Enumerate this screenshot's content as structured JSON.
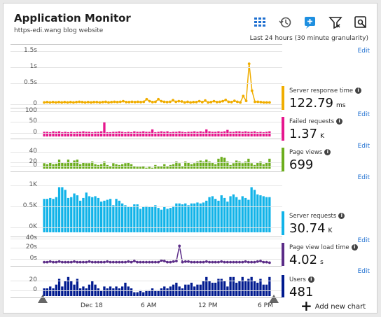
{
  "header": {
    "title": "Application Monitor",
    "subtitle": "https-edi.wang blog website",
    "time_range": "Last 24 hours (30 minute granularity)"
  },
  "toolbar": {
    "icons": [
      "grid-icon",
      "history-icon",
      "add-metric-icon",
      "filter-icon",
      "settings-icon"
    ],
    "accent": "#1e6fd0"
  },
  "edit_label": "Edit",
  "x_axis": {
    "labels": [
      "Dec 18",
      "6 AM",
      "12 PM",
      "6 PM"
    ]
  },
  "add_chart": {
    "label": "Add new chart",
    "icon": "plus-icon"
  },
  "watermark": "edi wang",
  "chart_data": [
    {
      "type": "line",
      "title": "Server response time",
      "display_value": "122.79",
      "unit": "ms",
      "color": "#f0ad00",
      "yticks": [
        "1.5s",
        "1s",
        "0.5s",
        "0"
      ],
      "ylim": [
        0,
        1.7
      ],
      "values": [
        0.08,
        0.09,
        0.08,
        0.09,
        0.08,
        0.09,
        0.08,
        0.09,
        0.08,
        0.09,
        0.08,
        0.09,
        0.1,
        0.09,
        0.08,
        0.09,
        0.08,
        0.09,
        0.09,
        0.08,
        0.09,
        0.1,
        0.08,
        0.09,
        0.1,
        0.09,
        0.1,
        0.12,
        0.09,
        0.09,
        0.1,
        0.09,
        0.1,
        0.09,
        0.1,
        0.18,
        0.12,
        0.09,
        0.1,
        0.18,
        0.12,
        0.1,
        0.09,
        0.1,
        0.15,
        0.1,
        0.12,
        0.11,
        0.08,
        0.1,
        0.08,
        0.09,
        0.09,
        0.12,
        0.09,
        0.14,
        0.08,
        0.09,
        0.12,
        0.09,
        0.1,
        0.12,
        0.16,
        0.1,
        0.09,
        0.13,
        0.1,
        0.08,
        0.28,
        0.13,
        1.3,
        0.45,
        0.1,
        0.1,
        0.09,
        0.08,
        0.08,
        0.08
      ]
    },
    {
      "type": "bar",
      "title": "Failed requests",
      "display_value": "1.37",
      "unit": "K",
      "color": "#e6178e",
      "yticks": [
        "100",
        "50",
        "0"
      ],
      "ylim": [
        0,
        110
      ],
      "values": [
        20,
        20,
        18,
        22,
        20,
        22,
        18,
        20,
        18,
        20,
        18,
        20,
        20,
        22,
        20,
        20,
        18,
        20,
        20,
        22,
        60,
        18,
        18,
        20,
        20,
        22,
        20,
        18,
        20,
        18,
        22,
        20,
        20,
        22,
        20,
        20,
        30,
        18,
        20,
        22,
        20,
        22,
        18,
        20,
        20,
        22,
        20,
        18,
        20,
        20,
        22,
        20,
        22,
        20,
        30,
        22,
        20,
        20,
        22,
        20,
        22,
        28,
        20,
        20,
        22,
        22,
        20,
        22,
        20,
        20,
        22,
        18,
        20,
        18,
        20,
        22
      ]
    },
    {
      "type": "bar",
      "title": "Page views",
      "display_value": "699",
      "unit": "",
      "color": "#6cad1d",
      "yticks": [
        "40",
        "20",
        "0"
      ],
      "ylim": [
        0,
        45
      ],
      "values": [
        12,
        10,
        14,
        10,
        11,
        20,
        14,
        12,
        20,
        14,
        18,
        20,
        10,
        14,
        12,
        12,
        16,
        10,
        8,
        10,
        16,
        8,
        6,
        12,
        10,
        8,
        10,
        12,
        14,
        10,
        6,
        4,
        4,
        6,
        2,
        4,
        2,
        8,
        6,
        6,
        10,
        6,
        8,
        10,
        16,
        12,
        6,
        16,
        14,
        10,
        12,
        16,
        18,
        16,
        20,
        16,
        14,
        10,
        22,
        26,
        24,
        16,
        8,
        12,
        18,
        16,
        12,
        16,
        22,
        12,
        8,
        14,
        16,
        10,
        14,
        22
      ]
    },
    {
      "type": "bar",
      "title": "Server requests",
      "display_value": "30.74",
      "unit": "K",
      "color": "#11b3e8",
      "yticks": [
        "1K",
        "0.5K",
        "0K"
      ],
      "ylim": [
        0,
        1100
      ],
      "values": [
        740,
        740,
        760,
        740,
        780,
        1000,
        1000,
        940,
        760,
        780,
        860,
        820,
        700,
        760,
        880,
        800,
        780,
        800,
        760,
        680,
        700,
        720,
        740,
        600,
        740,
        700,
        640,
        600,
        560,
        560,
        620,
        620,
        520,
        560,
        580,
        560,
        560,
        600,
        540,
        500,
        560,
        520,
        540,
        580,
        640,
        640,
        620,
        640,
        600,
        640,
        640,
        660,
        640,
        660,
        700,
        780,
        800,
        740,
        700,
        820,
        760,
        680,
        800,
        840,
        780,
        720,
        800,
        760,
        720,
        1000,
        940,
        840,
        820,
        800,
        780,
        780
      ]
    },
    {
      "type": "line",
      "title": "Page view load time",
      "display_value": "4.02",
      "unit": "s",
      "color": "#5b2c87",
      "yticks": [
        "40s",
        "20s",
        "0s"
      ],
      "ylim": [
        0,
        45
      ],
      "values": [
        3,
        3,
        4,
        3,
        3,
        4,
        3,
        3,
        3,
        3,
        4,
        3,
        3,
        3,
        3,
        4,
        3,
        3,
        3,
        3,
        3,
        4,
        3,
        3,
        3,
        3,
        3,
        3,
        4,
        3,
        5,
        3,
        3,
        3,
        3,
        3,
        3,
        3,
        3,
        6,
        5,
        3,
        3,
        4,
        5,
        32,
        3,
        4,
        4,
        3,
        3,
        3,
        3,
        3,
        4,
        3,
        3,
        3,
        3,
        4,
        3,
        3,
        3,
        3,
        3,
        3,
        3,
        4,
        3,
        3,
        3,
        4,
        5,
        3,
        3,
        2
      ]
    },
    {
      "type": "bar",
      "title": "Users",
      "display_value": "481",
      "unit": "",
      "color": "#001a8f",
      "yticks": [
        "20",
        "0"
      ],
      "ylim": [
        0,
        25
      ],
      "values": [
        8,
        8,
        10,
        8,
        12,
        18,
        10,
        16,
        20,
        16,
        12,
        18,
        8,
        10,
        8,
        12,
        16,
        12,
        8,
        6,
        10,
        8,
        10,
        8,
        10,
        8,
        10,
        14,
        10,
        8,
        4,
        4,
        6,
        4,
        6,
        6,
        8,
        6,
        6,
        8,
        10,
        8,
        10,
        12,
        14,
        10,
        8,
        12,
        12,
        14,
        10,
        12,
        12,
        16,
        20,
        16,
        14,
        14,
        18,
        18,
        16,
        10,
        20,
        20,
        14,
        16,
        20,
        16,
        18,
        20,
        16,
        14,
        18,
        12,
        12,
        20
      ]
    }
  ]
}
